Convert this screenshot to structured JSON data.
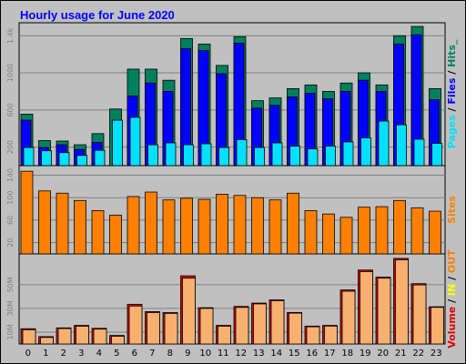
{
  "title": "Hourly usage for June 2020",
  "colors": {
    "background": "#c0c0c0",
    "plot_bg": "#c0c0c0",
    "title": "#0000ff",
    "hits": "#00805c",
    "files": "#0000ff",
    "pages": "#00e0ff",
    "sites": "#ff8000",
    "kbin": "#ff8000",
    "volume": "#e00000",
    "kbout": "#f8b070"
  },
  "chart_data": [
    {
      "type": "bar",
      "id": "hits-files-pages",
      "categories": [
        "0",
        "1",
        "2",
        "3",
        "4",
        "5",
        "6",
        "7",
        "8",
        "9",
        "10",
        "11",
        "12",
        "13",
        "14",
        "15",
        "16",
        "17",
        "18",
        "19",
        "20",
        "21",
        "22",
        "23"
      ],
      "series": [
        {
          "name": "Hits",
          "values": [
            555,
            270,
            265,
            225,
            345,
            610,
            1040,
            1040,
            920,
            1370,
            1310,
            1080,
            1390,
            700,
            730,
            830,
            870,
            800,
            890,
            1000,
            870,
            1400,
            1500,
            830
          ]
        },
        {
          "name": "Files",
          "values": [
            490,
            195,
            225,
            175,
            250,
            0,
            750,
            890,
            800,
            1260,
            1240,
            990,
            1320,
            620,
            650,
            740,
            780,
            720,
            800,
            920,
            800,
            1310,
            1410,
            710
          ]
        },
        {
          "name": "Pages",
          "values": [
            195,
            160,
            140,
            110,
            165,
            490,
            520,
            225,
            245,
            225,
            235,
            195,
            280,
            195,
            245,
            210,
            180,
            210,
            255,
            300,
            480,
            440,
            285,
            240
          ]
        }
      ],
      "y_tick_labels": [
        "200",
        "600",
        "1000",
        "1.4k"
      ],
      "y_tick_values": [
        200,
        600,
        1000,
        1400
      ],
      "ylim": [
        0,
        1540
      ],
      "legend": [
        {
          "label": "Pages",
          "color": "#00e0ff"
        },
        {
          "label": " / ",
          "color": "#000000"
        },
        {
          "label": "Files",
          "color": "#0000ff"
        },
        {
          "label": " / ",
          "color": "#000000"
        },
        {
          "label": "Hits_",
          "color": "#00805c"
        }
      ]
    },
    {
      "type": "bar",
      "id": "sites",
      "categories": [
        "0",
        "1",
        "2",
        "3",
        "4",
        "5",
        "6",
        "7",
        "8",
        "9",
        "10",
        "11",
        "12",
        "13",
        "14",
        "15",
        "16",
        "17",
        "18",
        "19",
        "20",
        "21",
        "22",
        "23"
      ],
      "series": [
        {
          "name": "Sites",
          "values": [
            147,
            112,
            108,
            95,
            77,
            69,
            102,
            110,
            96,
            99,
            97,
            106,
            104,
            100,
            96,
            108,
            77,
            71,
            65,
            83,
            84,
            95,
            82,
            76
          ]
        }
      ],
      "y_tick_labels": [
        "20",
        "60",
        "100",
        "140"
      ],
      "y_tick_values": [
        20,
        60,
        100,
        140
      ],
      "ylim": [
        0,
        157
      ],
      "legend": [
        {
          "label": "Sites",
          "color": "#ff8000"
        }
      ]
    },
    {
      "type": "bar",
      "id": "volume",
      "categories": [
        "0",
        "1",
        "2",
        "3",
        "4",
        "5",
        "6",
        "7",
        "8",
        "9",
        "10",
        "11",
        "12",
        "13",
        "14",
        "15",
        "16",
        "17",
        "18",
        "19",
        "20",
        "21",
        "22",
        "23"
      ],
      "series": [
        {
          "name": "Volume",
          "values": [
            12.9,
            6.2,
            13.6,
            15.7,
            13.2,
            7.2,
            33.5,
            27.3,
            26.5,
            57.5,
            30.6,
            15.7,
            31.7,
            34.5,
            37.2,
            26.6,
            15.1,
            15.7,
            45.6,
            62.4,
            56.4,
            72.2,
            50.9,
            31.4
          ]
        },
        {
          "name": "KB In",
          "values": [
            12.0,
            5.5,
            13.0,
            15.0,
            12.5,
            6.5,
            32.0,
            26.5,
            25.8,
            55.5,
            30.0,
            15.0,
            30.8,
            33.8,
            36.5,
            26.0,
            14.5,
            15.1,
            44.5,
            61.0,
            55.5,
            71.0,
            49.8,
            30.9
          ]
        }
      ],
      "y_tick_labels": [
        "10M",
        "30M",
        "50M"
      ],
      "y_tick_values": [
        10,
        30,
        50
      ],
      "ylim": [
        0,
        76
      ],
      "legend": [
        {
          "label": "Volume",
          "color": "#e00000"
        },
        {
          "label": " / ",
          "color": "#000000"
        },
        {
          "label": "IN",
          "color": "#ffff00"
        },
        {
          "label": " / ",
          "color": "#000000"
        },
        {
          "label": "OUT",
          "color": "#ff8000"
        }
      ]
    }
  ]
}
